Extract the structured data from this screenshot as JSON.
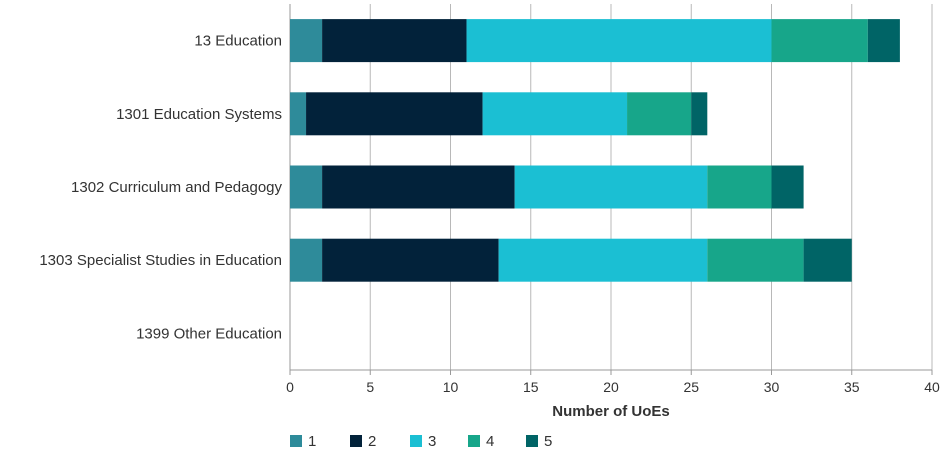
{
  "chart_data": {
    "type": "bar",
    "orientation": "horizontal",
    "stacked": true,
    "title": "",
    "xlabel": "Number of UoEs",
    "ylabel": "",
    "xlim": [
      0,
      40
    ],
    "xticks": [
      0,
      5,
      10,
      15,
      20,
      25,
      30,
      35,
      40
    ],
    "grid": "vertical",
    "legend": "bottom-left",
    "categories": [
      "13 Education",
      "1301 Education Systems",
      "1302 Curriculum and Pedagogy",
      "1303 Specialist Studies in Education",
      "1399 Other Education"
    ],
    "series": [
      {
        "name": "1",
        "color": "#2e8b9a",
        "values": [
          2,
          1,
          2,
          2,
          0
        ]
      },
      {
        "name": "2",
        "color": "#02223a",
        "values": [
          9,
          11,
          12,
          11,
          0
        ]
      },
      {
        "name": "3",
        "color": "#1bbfd3",
        "values": [
          19,
          9,
          12,
          13,
          0
        ]
      },
      {
        "name": "4",
        "color": "#17a68a",
        "values": [
          6,
          4,
          4,
          6,
          0
        ]
      },
      {
        "name": "5",
        "color": "#006466",
        "values": [
          2,
          1,
          2,
          3,
          0
        ]
      }
    ]
  }
}
